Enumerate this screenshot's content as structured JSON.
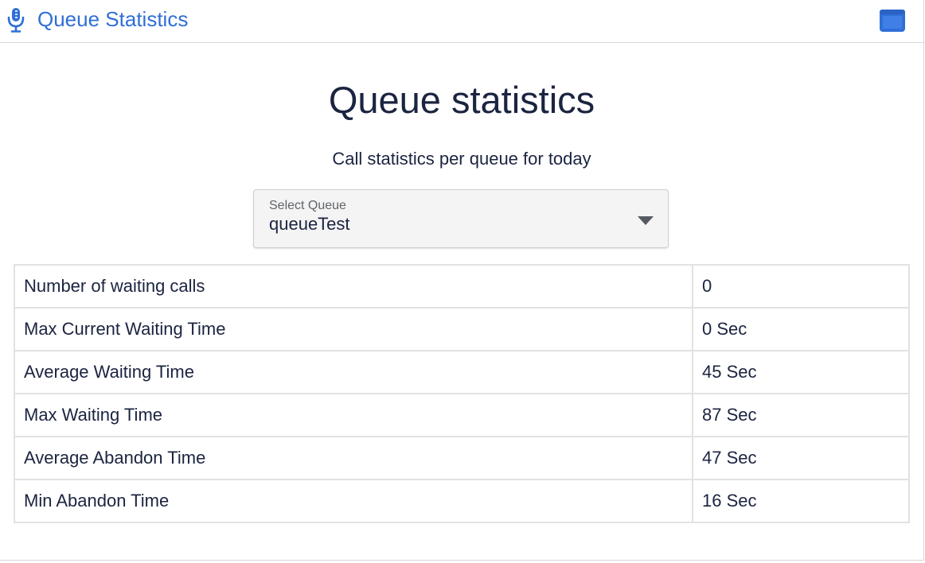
{
  "header": {
    "title": "Queue Statistics",
    "icon": "microphone-icon",
    "action_icon": "window-icon",
    "accent": "#2f6fd6"
  },
  "main": {
    "title": "Queue statistics",
    "subtitle": "Call statistics per queue for today",
    "select": {
      "label": "Select Queue",
      "value": "queueTest"
    },
    "rows": [
      {
        "label": "Number of waiting calls",
        "value": "0"
      },
      {
        "label": "Max Current Waiting Time",
        "value": "0 Sec"
      },
      {
        "label": "Average Waiting Time",
        "value": "45 Sec"
      },
      {
        "label": "Max Waiting Time",
        "value": "87 Sec"
      },
      {
        "label": "Average Abandon Time",
        "value": "47 Sec"
      },
      {
        "label": "Min Abandon Time",
        "value": "16 Sec"
      }
    ]
  }
}
